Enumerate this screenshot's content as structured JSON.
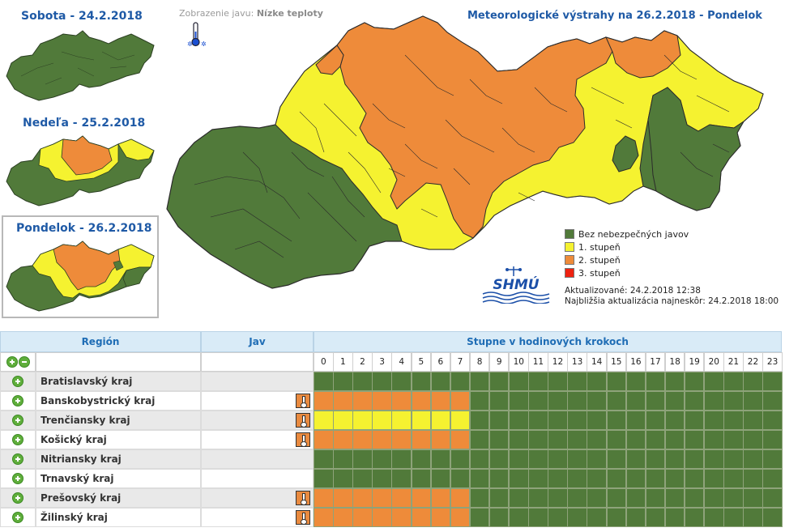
{
  "colors": {
    "green": "#517a3a",
    "yellow": "#f5f230",
    "orange": "#ee8b3a",
    "red": "#ee2211",
    "border": "#2b2b2b",
    "header_bg": "#d9ebf7",
    "header_text": "#1f6db5",
    "title_text": "#1f5aa6"
  },
  "display": {
    "label": "Zobrazenie javu:",
    "value": "Nízke teploty",
    "icon": "thermometer-icon"
  },
  "main_title": "Meteorologické výstrahy na 26.2.2018 - Pondelok",
  "days": [
    {
      "label": "Sobota - 24.2.2018"
    },
    {
      "label": "Nedeľa - 25.2.2018"
    },
    {
      "label": "Pondelok - 26.2.2018",
      "selected": true
    }
  ],
  "legend": [
    {
      "label": "Bez nebezpečných javov",
      "color": "#517a3a"
    },
    {
      "label": "1. stupeň",
      "color": "#f5f230"
    },
    {
      "label": "2. stupeň",
      "color": "#ee8b3a"
    },
    {
      "label": "3. stupeň",
      "color": "#ee2211"
    }
  ],
  "updated": {
    "line1": "Aktualizované: 24.2.2018 12:38",
    "line2": "Najbližšia aktualizácia najneskôr: 24.2.2018 18:00"
  },
  "logo": {
    "text": "SHMÚ"
  },
  "table": {
    "headers": {
      "region": "Región",
      "jav": "Jav",
      "steps": "Stupne v hodinových krokoch"
    },
    "hours": [
      "0",
      "1",
      "2",
      "3",
      "4",
      "5",
      "6",
      "7",
      "8",
      "9",
      "10",
      "11",
      "12",
      "13",
      "14",
      "15",
      "16",
      "17",
      "18",
      "19",
      "20",
      "21",
      "22",
      "23"
    ],
    "rows": [
      {
        "name": "Bratislavský kraj",
        "jav": false,
        "levels": [
          0,
          0,
          0,
          0,
          0,
          0,
          0,
          0,
          0,
          0,
          0,
          0,
          0,
          0,
          0,
          0,
          0,
          0,
          0,
          0,
          0,
          0,
          0,
          0
        ]
      },
      {
        "name": "Banskobystrický kraj",
        "jav": true,
        "levels": [
          2,
          2,
          2,
          2,
          2,
          2,
          2,
          2,
          0,
          0,
          0,
          0,
          0,
          0,
          0,
          0,
          0,
          0,
          0,
          0,
          0,
          0,
          0,
          0
        ]
      },
      {
        "name": "Trenčiansky kraj",
        "jav": true,
        "levels": [
          1,
          1,
          1,
          1,
          1,
          1,
          1,
          1,
          0,
          0,
          0,
          0,
          0,
          0,
          0,
          0,
          0,
          0,
          0,
          0,
          0,
          0,
          0,
          0
        ]
      },
      {
        "name": "Košický kraj",
        "jav": true,
        "levels": [
          2,
          2,
          2,
          2,
          2,
          2,
          2,
          2,
          0,
          0,
          0,
          0,
          0,
          0,
          0,
          0,
          0,
          0,
          0,
          0,
          0,
          0,
          0,
          0
        ]
      },
      {
        "name": "Nitriansky kraj",
        "jav": false,
        "levels": [
          0,
          0,
          0,
          0,
          0,
          0,
          0,
          0,
          0,
          0,
          0,
          0,
          0,
          0,
          0,
          0,
          0,
          0,
          0,
          0,
          0,
          0,
          0,
          0
        ]
      },
      {
        "name": "Trnavský kraj",
        "jav": false,
        "levels": [
          0,
          0,
          0,
          0,
          0,
          0,
          0,
          0,
          0,
          0,
          0,
          0,
          0,
          0,
          0,
          0,
          0,
          0,
          0,
          0,
          0,
          0,
          0,
          0
        ]
      },
      {
        "name": "Prešovský kraj",
        "jav": true,
        "levels": [
          2,
          2,
          2,
          2,
          2,
          2,
          2,
          2,
          0,
          0,
          0,
          0,
          0,
          0,
          0,
          0,
          0,
          0,
          0,
          0,
          0,
          0,
          0,
          0
        ]
      },
      {
        "name": "Žilinský kraj",
        "jav": true,
        "levels": [
          2,
          2,
          2,
          2,
          2,
          2,
          2,
          2,
          0,
          0,
          0,
          0,
          0,
          0,
          0,
          0,
          0,
          0,
          0,
          0,
          0,
          0,
          0,
          0
        ]
      }
    ]
  }
}
